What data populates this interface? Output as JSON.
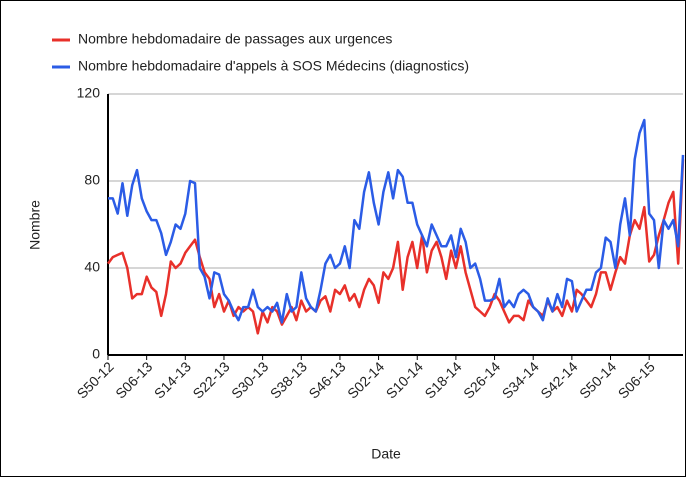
{
  "chart_data": {
    "type": "line",
    "xlabel": "Date",
    "ylabel": "Nombre",
    "categories": [
      "S50-12",
      null,
      null,
      null,
      null,
      null,
      null,
      null,
      "S06-13",
      null,
      null,
      null,
      null,
      null,
      null,
      null,
      "S14-13",
      null,
      null,
      null,
      null,
      null,
      null,
      null,
      "S22-13",
      null,
      null,
      null,
      null,
      null,
      null,
      null,
      "S30-13",
      null,
      null,
      null,
      null,
      null,
      null,
      null,
      "S38-13",
      null,
      null,
      null,
      null,
      null,
      null,
      null,
      "S46-13",
      null,
      null,
      null,
      null,
      null,
      null,
      null,
      "S02-14",
      null,
      null,
      null,
      null,
      null,
      null,
      null,
      "S10-14",
      null,
      null,
      null,
      null,
      null,
      null,
      null,
      "S18-14",
      null,
      null,
      null,
      null,
      null,
      null,
      null,
      "S26-14",
      null,
      null,
      null,
      null,
      null,
      null,
      null,
      "S34-14",
      null,
      null,
      null,
      null,
      null,
      null,
      null,
      "S42-14",
      null,
      null,
      null,
      null,
      null,
      null,
      null,
      "S50-14",
      null,
      null,
      null,
      null,
      null,
      null,
      null,
      "S06-15",
      null,
      null,
      null,
      null,
      null,
      null,
      null
    ],
    "series": [
      {
        "name": "Nombre hebdomadaire de passages aux urgences",
        "color": "#e8302a",
        "values": [
          42,
          45,
          46,
          47,
          40,
          26,
          28,
          28,
          36,
          31,
          29,
          18,
          28,
          43,
          40,
          42,
          47,
          50,
          53,
          45,
          38,
          35,
          22,
          28,
          20,
          25,
          18,
          22,
          20,
          22,
          20,
          10,
          20,
          15,
          22,
          20,
          14,
          18,
          22,
          16,
          25,
          20,
          22,
          20,
          25,
          27,
          20,
          30,
          28,
          32,
          25,
          28,
          22,
          30,
          35,
          32,
          24,
          38,
          35,
          40,
          52,
          30,
          45,
          52,
          40,
          55,
          38,
          48,
          52,
          45,
          35,
          48,
          40,
          50,
          38,
          30,
          22,
          20,
          18,
          22,
          28,
          25,
          20,
          15,
          18,
          18,
          16,
          25,
          22,
          20,
          18,
          25,
          20,
          22,
          18,
          25,
          20,
          30,
          28,
          25,
          22,
          28,
          38,
          38,
          30,
          38,
          45,
          42,
          55,
          62,
          58,
          68,
          43,
          46,
          55,
          62,
          70,
          75,
          42,
          90
        ]
      },
      {
        "name": "Nombre hebdomadaire d'appels à SOS Médecins (diagnostics)",
        "color": "#2b5ce6",
        "values": [
          72,
          72,
          65,
          79,
          64,
          78,
          85,
          72,
          66,
          62,
          62,
          56,
          46,
          52,
          60,
          58,
          65,
          80,
          79,
          40,
          36,
          26,
          38,
          37,
          28,
          25,
          20,
          16,
          22,
          22,
          30,
          22,
          20,
          22,
          20,
          24,
          15,
          28,
          20,
          22,
          38,
          26,
          22,
          20,
          30,
          42,
          46,
          40,
          42,
          50,
          40,
          62,
          58,
          75,
          84,
          70,
          60,
          75,
          84,
          72,
          85,
          82,
          70,
          70,
          60,
          55,
          50,
          60,
          55,
          50,
          50,
          55,
          45,
          58,
          52,
          40,
          42,
          35,
          25,
          25,
          26,
          35,
          22,
          25,
          22,
          28,
          30,
          28,
          22,
          20,
          16,
          26,
          20,
          28,
          22,
          35,
          34,
          20,
          25,
          30,
          30,
          38,
          40,
          54,
          52,
          40,
          60,
          72,
          55,
          90,
          102,
          108,
          65,
          62,
          40,
          62,
          58,
          62,
          50,
          92
        ]
      }
    ],
    "ylim": [
      0,
      120
    ],
    "yticks": [
      0,
      40,
      80,
      120
    ],
    "grid": true
  }
}
